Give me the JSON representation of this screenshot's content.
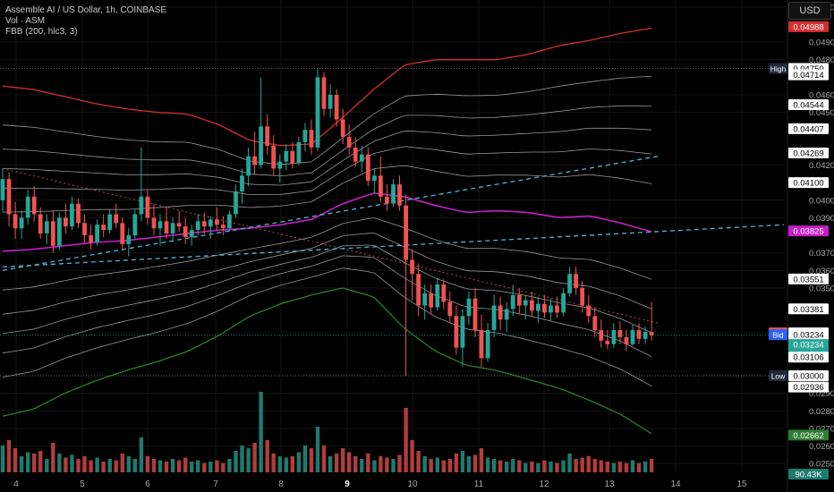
{
  "header": {
    "title": "Assemble AI / US Dollar, 1h, COINBASE",
    "volume_label": "Vol · ASM",
    "indicator_label": "FBB (200, hlc3, 3)",
    "currency_button": "USD"
  },
  "colors": {
    "background": "#000000",
    "up": "#26a69a",
    "down": "#ef5350",
    "volume_up": "#1e7a6f",
    "volume_down": "#b23c3c",
    "upper_band": "#d32f2f",
    "lower_band": "#2e7d32",
    "basis": "#c51fc5",
    "fib_lines": "#c8c8c8",
    "trendline": "#4fb3d9",
    "grid": "#141414"
  },
  "chart_data": {
    "type": "candlestick",
    "symbol": "Assemble AI / US Dollar",
    "interval": "1h",
    "exchange": "COINBASE",
    "ylim": [
      0.0245,
      0.0514
    ],
    "x_ticks": [
      "4",
      "5",
      "6",
      "7",
      "8",
      "9",
      "10",
      "11",
      "12",
      "13",
      "14",
      "15"
    ],
    "x_ticks_bold": [
      "9"
    ],
    "y_ticks": [
      "0.05100",
      "0.04900",
      "0.04800",
      "0.04600",
      "0.04500",
      "0.04200",
      "0.04000",
      "0.03900",
      "0.03700",
      "0.03600",
      "0.03500",
      "0.02900",
      "0.02800",
      "0.02700",
      "0.02600",
      "0.02500"
    ],
    "price_tags": [
      {
        "label": "",
        "value": "0.04988",
        "kind": "upper_band"
      },
      {
        "label": "High",
        "value": "0.04750",
        "kind": "high"
      },
      {
        "label": "",
        "value": "0.04714",
        "kind": "fib"
      },
      {
        "label": "",
        "value": "0.04544",
        "kind": "fib"
      },
      {
        "label": "",
        "value": "0.04407",
        "kind": "fib"
      },
      {
        "label": "",
        "value": "0.04269",
        "kind": "fib"
      },
      {
        "label": "",
        "value": "0.04100",
        "kind": "fib"
      },
      {
        "label": "",
        "value": "0.03825",
        "kind": "basis"
      },
      {
        "label": "",
        "value": "0.03551",
        "kind": "fib"
      },
      {
        "label": "",
        "value": "0.03381",
        "kind": "fib"
      },
      {
        "label": "Ask",
        "value": "0.03244",
        "kind": "ask"
      },
      {
        "label": "",
        "value": "0.03243",
        "kind": "fib"
      },
      {
        "label": "Bid",
        "value": "0.03234",
        "kind": "bid"
      },
      {
        "label": "",
        "value": "0.03234",
        "kind": "last"
      },
      {
        "label": "",
        "value": "54:50",
        "kind": "countdown"
      },
      {
        "label": "",
        "value": "0.03106",
        "kind": "fib"
      },
      {
        "label": "Low",
        "value": "0.03000",
        "kind": "low"
      },
      {
        "label": "",
        "value": "0.02936",
        "kind": "fib"
      },
      {
        "label": "",
        "value": "0.02662",
        "kind": "lower_band"
      },
      {
        "label": "",
        "value": "90.43K",
        "kind": "volume"
      }
    ],
    "fib_bands": {
      "upper": [
        0.0465,
        0.0463,
        0.0459,
        0.0455,
        0.0452,
        0.045,
        0.0449,
        0.0443,
        0.0434,
        0.0431,
        0.0432,
        0.0447,
        0.0463,
        0.0477,
        0.048,
        0.048,
        0.048,
        0.0483,
        0.0488,
        0.0491,
        0.0495,
        0.0498
      ],
      "basis": [
        0.0371,
        0.0372,
        0.0374,
        0.0376,
        0.0377,
        0.0379,
        0.0381,
        0.0383,
        0.0384,
        0.0386,
        0.0389,
        0.0398,
        0.0404,
        0.0402,
        0.0397,
        0.0393,
        0.0394,
        0.0393,
        0.039,
        0.0391,
        0.0387,
        0.0382
      ],
      "lower": [
        0.0277,
        0.0281,
        0.029,
        0.0297,
        0.0303,
        0.0308,
        0.0314,
        0.0323,
        0.0334,
        0.0341,
        0.0346,
        0.035,
        0.0345,
        0.0327,
        0.0314,
        0.0306,
        0.0303,
        0.0298,
        0.0293,
        0.0286,
        0.0278,
        0.0267
      ]
    },
    "trendlines": [
      {
        "from": [
          0,
          0.036
        ],
        "to": [
          104,
          0.0425
        ],
        "style": "dashed"
      },
      {
        "from": [
          0,
          0.0362
        ],
        "to": [
          124,
          0.0386
        ],
        "style": "dashed"
      }
    ],
    "resistance_line": {
      "from": [
        0,
        0.0418
      ],
      "to": [
        104,
        0.033
      ],
      "style": "dotted"
    },
    "horizontal_levels": [
      0.0475,
      0.03
    ],
    "candles": [
      {
        "o": 0.04,
        "h": 0.0418,
        "l": 0.0393,
        "c": 0.0412,
        "v": 20
      },
      {
        "o": 0.0412,
        "h": 0.0416,
        "l": 0.0385,
        "c": 0.0392,
        "v": 24
      },
      {
        "o": 0.0392,
        "h": 0.0399,
        "l": 0.0378,
        "c": 0.0384,
        "v": 18
      },
      {
        "o": 0.0384,
        "h": 0.0394,
        "l": 0.0378,
        "c": 0.039,
        "v": 12
      },
      {
        "o": 0.039,
        "h": 0.0406,
        "l": 0.0386,
        "c": 0.0402,
        "v": 15
      },
      {
        "o": 0.0402,
        "h": 0.0408,
        "l": 0.0388,
        "c": 0.0392,
        "v": 14
      },
      {
        "o": 0.0392,
        "h": 0.0396,
        "l": 0.0378,
        "c": 0.0381,
        "v": 16
      },
      {
        "o": 0.0381,
        "h": 0.0392,
        "l": 0.0375,
        "c": 0.0388,
        "v": 10
      },
      {
        "o": 0.0388,
        "h": 0.0394,
        "l": 0.037,
        "c": 0.0374,
        "v": 22
      },
      {
        "o": 0.0374,
        "h": 0.0393,
        "l": 0.0372,
        "c": 0.039,
        "v": 14
      },
      {
        "o": 0.039,
        "h": 0.0398,
        "l": 0.0381,
        "c": 0.0385,
        "v": 11
      },
      {
        "o": 0.0385,
        "h": 0.0402,
        "l": 0.0383,
        "c": 0.0398,
        "v": 13
      },
      {
        "o": 0.0398,
        "h": 0.0401,
        "l": 0.0384,
        "c": 0.0387,
        "v": 10
      },
      {
        "o": 0.0387,
        "h": 0.0392,
        "l": 0.0376,
        "c": 0.038,
        "v": 12
      },
      {
        "o": 0.038,
        "h": 0.0386,
        "l": 0.0372,
        "c": 0.0376,
        "v": 9
      },
      {
        "o": 0.0376,
        "h": 0.0389,
        "l": 0.0374,
        "c": 0.0386,
        "v": 11
      },
      {
        "o": 0.0386,
        "h": 0.0392,
        "l": 0.0379,
        "c": 0.0383,
        "v": 8
      },
      {
        "o": 0.0383,
        "h": 0.0395,
        "l": 0.0381,
        "c": 0.0392,
        "v": 10
      },
      {
        "o": 0.0392,
        "h": 0.0398,
        "l": 0.0384,
        "c": 0.0387,
        "v": 9
      },
      {
        "o": 0.0387,
        "h": 0.039,
        "l": 0.0371,
        "c": 0.0375,
        "v": 14
      },
      {
        "o": 0.0375,
        "h": 0.0384,
        "l": 0.0368,
        "c": 0.038,
        "v": 12
      },
      {
        "o": 0.038,
        "h": 0.0395,
        "l": 0.0378,
        "c": 0.0392,
        "v": 10
      },
      {
        "o": 0.0392,
        "h": 0.043,
        "l": 0.0388,
        "c": 0.0402,
        "v": 26
      },
      {
        "o": 0.0402,
        "h": 0.0406,
        "l": 0.0386,
        "c": 0.039,
        "v": 12
      },
      {
        "o": 0.039,
        "h": 0.0398,
        "l": 0.038,
        "c": 0.0384,
        "v": 10
      },
      {
        "o": 0.0384,
        "h": 0.0392,
        "l": 0.0374,
        "c": 0.0388,
        "v": 9
      },
      {
        "o": 0.0388,
        "h": 0.0396,
        "l": 0.0378,
        "c": 0.0381,
        "v": 8
      },
      {
        "o": 0.0381,
        "h": 0.039,
        "l": 0.0376,
        "c": 0.0387,
        "v": 10
      },
      {
        "o": 0.0387,
        "h": 0.0394,
        "l": 0.0382,
        "c": 0.0385,
        "v": 9
      },
      {
        "o": 0.0385,
        "h": 0.039,
        "l": 0.0375,
        "c": 0.0379,
        "v": 11
      },
      {
        "o": 0.0379,
        "h": 0.0386,
        "l": 0.0374,
        "c": 0.0383,
        "v": 8
      },
      {
        "o": 0.0383,
        "h": 0.0392,
        "l": 0.038,
        "c": 0.0388,
        "v": 9
      },
      {
        "o": 0.0388,
        "h": 0.0393,
        "l": 0.0381,
        "c": 0.0385,
        "v": 7
      },
      {
        "o": 0.0385,
        "h": 0.0391,
        "l": 0.0378,
        "c": 0.0389,
        "v": 8
      },
      {
        "o": 0.0389,
        "h": 0.0396,
        "l": 0.0383,
        "c": 0.0386,
        "v": 9
      },
      {
        "o": 0.0386,
        "h": 0.0391,
        "l": 0.038,
        "c": 0.0384,
        "v": 7
      },
      {
        "o": 0.0384,
        "h": 0.0394,
        "l": 0.0382,
        "c": 0.0392,
        "v": 10
      },
      {
        "o": 0.0392,
        "h": 0.0409,
        "l": 0.039,
        "c": 0.0405,
        "v": 16
      },
      {
        "o": 0.0405,
        "h": 0.0418,
        "l": 0.0398,
        "c": 0.0414,
        "v": 20
      },
      {
        "o": 0.0414,
        "h": 0.043,
        "l": 0.0408,
        "c": 0.0425,
        "v": 18
      },
      {
        "o": 0.0425,
        "h": 0.0439,
        "l": 0.0415,
        "c": 0.042,
        "v": 22
      },
      {
        "o": 0.042,
        "h": 0.047,
        "l": 0.0418,
        "c": 0.0442,
        "v": 60
      },
      {
        "o": 0.0442,
        "h": 0.0449,
        "l": 0.0426,
        "c": 0.0431,
        "v": 24
      },
      {
        "o": 0.0431,
        "h": 0.0437,
        "l": 0.0414,
        "c": 0.0418,
        "v": 14
      },
      {
        "o": 0.0418,
        "h": 0.0426,
        "l": 0.041,
        "c": 0.0422,
        "v": 12
      },
      {
        "o": 0.0422,
        "h": 0.0432,
        "l": 0.0417,
        "c": 0.0428,
        "v": 11
      },
      {
        "o": 0.0428,
        "h": 0.0433,
        "l": 0.0418,
        "c": 0.0421,
        "v": 12
      },
      {
        "o": 0.0421,
        "h": 0.0436,
        "l": 0.042,
        "c": 0.0433,
        "v": 15
      },
      {
        "o": 0.0433,
        "h": 0.0444,
        "l": 0.0428,
        "c": 0.044,
        "v": 20
      },
      {
        "o": 0.044,
        "h": 0.0446,
        "l": 0.0426,
        "c": 0.043,
        "v": 18
      },
      {
        "o": 0.043,
        "h": 0.0475,
        "l": 0.0428,
        "c": 0.047,
        "v": 34
      },
      {
        "o": 0.047,
        "h": 0.0473,
        "l": 0.0448,
        "c": 0.0452,
        "v": 20
      },
      {
        "o": 0.0452,
        "h": 0.0466,
        "l": 0.0447,
        "c": 0.046,
        "v": 12
      },
      {
        "o": 0.046,
        "h": 0.0463,
        "l": 0.0442,
        "c": 0.0446,
        "v": 14
      },
      {
        "o": 0.0446,
        "h": 0.0452,
        "l": 0.0432,
        "c": 0.0436,
        "v": 18
      },
      {
        "o": 0.0436,
        "h": 0.0443,
        "l": 0.0426,
        "c": 0.043,
        "v": 15
      },
      {
        "o": 0.043,
        "h": 0.0436,
        "l": 0.0419,
        "c": 0.0422,
        "v": 12
      },
      {
        "o": 0.0422,
        "h": 0.0431,
        "l": 0.0416,
        "c": 0.0426,
        "v": 10
      },
      {
        "o": 0.0426,
        "h": 0.043,
        "l": 0.0408,
        "c": 0.0411,
        "v": 14
      },
      {
        "o": 0.0411,
        "h": 0.0418,
        "l": 0.0404,
        "c": 0.0414,
        "v": 9
      },
      {
        "o": 0.0414,
        "h": 0.0425,
        "l": 0.0399,
        "c": 0.0402,
        "v": 12
      },
      {
        "o": 0.0402,
        "h": 0.0409,
        "l": 0.0394,
        "c": 0.0398,
        "v": 11
      },
      {
        "o": 0.0398,
        "h": 0.0412,
        "l": 0.0396,
        "c": 0.0409,
        "v": 10
      },
      {
        "o": 0.0409,
        "h": 0.0414,
        "l": 0.0394,
        "c": 0.0397,
        "v": 13
      },
      {
        "o": 0.0397,
        "h": 0.0403,
        "l": 0.03,
        "c": 0.0366,
        "v": 48
      },
      {
        "o": 0.0366,
        "h": 0.0372,
        "l": 0.0343,
        "c": 0.0358,
        "v": 24
      },
      {
        "o": 0.0358,
        "h": 0.0364,
        "l": 0.0334,
        "c": 0.034,
        "v": 16
      },
      {
        "o": 0.034,
        "h": 0.0352,
        "l": 0.0332,
        "c": 0.0347,
        "v": 12
      },
      {
        "o": 0.0347,
        "h": 0.0352,
        "l": 0.0335,
        "c": 0.0339,
        "v": 10
      },
      {
        "o": 0.0339,
        "h": 0.0356,
        "l": 0.0337,
        "c": 0.0352,
        "v": 11
      },
      {
        "o": 0.0352,
        "h": 0.0355,
        "l": 0.0338,
        "c": 0.0342,
        "v": 9
      },
      {
        "o": 0.0342,
        "h": 0.0348,
        "l": 0.033,
        "c": 0.0334,
        "v": 10
      },
      {
        "o": 0.0334,
        "h": 0.034,
        "l": 0.0312,
        "c": 0.0316,
        "v": 14
      },
      {
        "o": 0.0316,
        "h": 0.0338,
        "l": 0.0305,
        "c": 0.0334,
        "v": 16
      },
      {
        "o": 0.0334,
        "h": 0.0348,
        "l": 0.0329,
        "c": 0.0344,
        "v": 12
      },
      {
        "o": 0.0344,
        "h": 0.035,
        "l": 0.0322,
        "c": 0.0326,
        "v": 13
      },
      {
        "o": 0.0326,
        "h": 0.0335,
        "l": 0.0305,
        "c": 0.031,
        "v": 18
      },
      {
        "o": 0.031,
        "h": 0.033,
        "l": 0.0308,
        "c": 0.0326,
        "v": 11
      },
      {
        "o": 0.0326,
        "h": 0.0346,
        "l": 0.0322,
        "c": 0.034,
        "v": 10
      },
      {
        "o": 0.034,
        "h": 0.0345,
        "l": 0.0326,
        "c": 0.0332,
        "v": 9
      },
      {
        "o": 0.0332,
        "h": 0.0342,
        "l": 0.0325,
        "c": 0.0338,
        "v": 8
      },
      {
        "o": 0.0338,
        "h": 0.0352,
        "l": 0.0334,
        "c": 0.0346,
        "v": 10
      },
      {
        "o": 0.0346,
        "h": 0.035,
        "l": 0.0335,
        "c": 0.034,
        "v": 9
      },
      {
        "o": 0.034,
        "h": 0.0346,
        "l": 0.0332,
        "c": 0.0343,
        "v": 7
      },
      {
        "o": 0.0343,
        "h": 0.0348,
        "l": 0.0334,
        "c": 0.0337,
        "v": 8
      },
      {
        "o": 0.0337,
        "h": 0.0345,
        "l": 0.033,
        "c": 0.0341,
        "v": 7
      },
      {
        "o": 0.0341,
        "h": 0.0346,
        "l": 0.0333,
        "c": 0.0336,
        "v": 9
      },
      {
        "o": 0.0336,
        "h": 0.0344,
        "l": 0.0331,
        "c": 0.034,
        "v": 8
      },
      {
        "o": 0.034,
        "h": 0.0345,
        "l": 0.0333,
        "c": 0.0336,
        "v": 7
      },
      {
        "o": 0.0336,
        "h": 0.035,
        "l": 0.0334,
        "c": 0.0347,
        "v": 9
      },
      {
        "o": 0.0347,
        "h": 0.0362,
        "l": 0.0345,
        "c": 0.0358,
        "v": 14
      },
      {
        "o": 0.0358,
        "h": 0.0362,
        "l": 0.0346,
        "c": 0.035,
        "v": 10
      },
      {
        "o": 0.035,
        "h": 0.0354,
        "l": 0.0336,
        "c": 0.034,
        "v": 11
      },
      {
        "o": 0.034,
        "h": 0.0346,
        "l": 0.033,
        "c": 0.0334,
        "v": 12
      },
      {
        "o": 0.0334,
        "h": 0.0339,
        "l": 0.0322,
        "c": 0.0326,
        "v": 10
      },
      {
        "o": 0.0326,
        "h": 0.0332,
        "l": 0.0316,
        "c": 0.032,
        "v": 9
      },
      {
        "o": 0.032,
        "h": 0.0326,
        "l": 0.0315,
        "c": 0.0318,
        "v": 8
      },
      {
        "o": 0.0318,
        "h": 0.033,
        "l": 0.0316,
        "c": 0.0326,
        "v": 7
      },
      {
        "o": 0.0326,
        "h": 0.0331,
        "l": 0.0318,
        "c": 0.0322,
        "v": 8
      },
      {
        "o": 0.0322,
        "h": 0.0326,
        "l": 0.0314,
        "c": 0.0318,
        "v": 7
      },
      {
        "o": 0.0318,
        "h": 0.0329,
        "l": 0.0317,
        "c": 0.0326,
        "v": 9
      },
      {
        "o": 0.0326,
        "h": 0.033,
        "l": 0.0318,
        "c": 0.0321,
        "v": 7
      },
      {
        "o": 0.0321,
        "h": 0.0328,
        "l": 0.0318,
        "c": 0.0325,
        "v": 8
      },
      {
        "o": 0.0325,
        "h": 0.0342,
        "l": 0.032,
        "c": 0.0323,
        "v": 10
      }
    ]
  }
}
